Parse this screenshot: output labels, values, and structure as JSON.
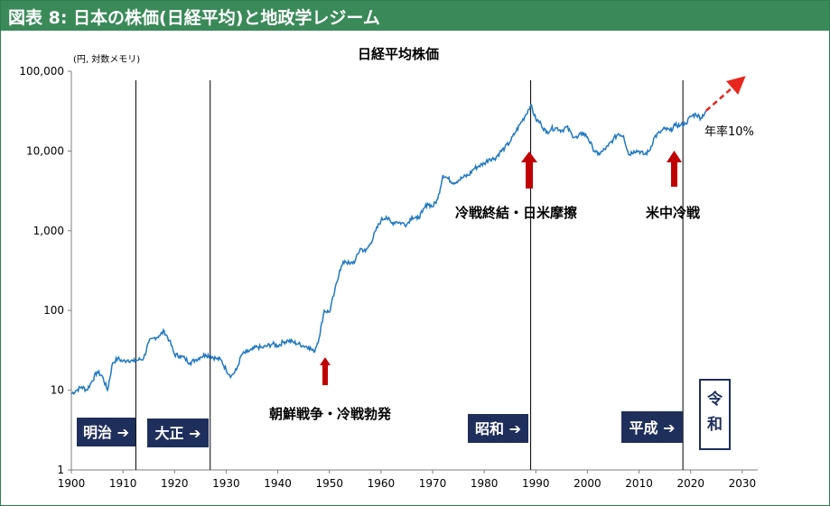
{
  "header": {
    "title": "図表 8: 日本の株価(日経平均)と地政学レジーム"
  },
  "chart_data": {
    "type": "line",
    "title": "日経平均株価",
    "ylabel": "(円, 対数メモリ)",
    "xlabel": "",
    "y_scale": "log",
    "ylim": [
      1,
      100000
    ],
    "xlim": [
      1900,
      2033
    ],
    "x_ticks": [
      "1900",
      "1910",
      "1920",
      "1930",
      "1940",
      "1950",
      "1960",
      "1970",
      "1980",
      "1990",
      "2000",
      "2010",
      "2020",
      "2030"
    ],
    "y_ticks": [
      "1",
      "10",
      "100",
      "1,000",
      "10,000",
      "100,000"
    ],
    "grid": false,
    "line_color": "#1f78c1",
    "series": [
      {
        "x": [
          1900,
          1901,
          1902,
          1903,
          1904,
          1905,
          1906,
          1907,
          1908,
          1909,
          1910,
          1911,
          1912,
          1913,
          1914,
          1915,
          1916,
          1917,
          1918,
          1919,
          1920,
          1921,
          1922,
          1923,
          1924,
          1925,
          1926,
          1927,
          1928,
          1929,
          1930,
          1931,
          1932,
          1933,
          1934,
          1935,
          1936,
          1937,
          1938,
          1939,
          1940,
          1941,
          1942,
          1943,
          1944,
          1945,
          1946,
          1947,
          1948,
          1949,
          1950,
          1951,
          1952,
          1953,
          1954,
          1955,
          1956,
          1957,
          1958,
          1959,
          1960,
          1961,
          1962,
          1963,
          1964,
          1965,
          1966,
          1967,
          1968,
          1969,
          1970,
          1971,
          1972,
          1973,
          1974,
          1975,
          1976,
          1977,
          1978,
          1979,
          1980,
          1981,
          1982,
          1983,
          1984,
          1985,
          1986,
          1987,
          1988,
          1989,
          1990,
          1991,
          1992,
          1993,
          1994,
          1995,
          1996,
          1997,
          1998,
          1999,
          2000,
          2001,
          2002,
          2003,
          2004,
          2005,
          2006,
          2007,
          2008,
          2009,
          2010,
          2011,
          2012,
          2013,
          2014,
          2015,
          2016,
          2017,
          2018,
          2019,
          2020,
          2021,
          2022,
          2023
        ],
        "values": [
          9,
          10,
          11,
          10,
          13,
          17,
          15,
          10,
          22,
          25,
          23,
          24,
          23,
          24,
          25,
          40,
          45,
          48,
          55,
          42,
          28,
          27,
          25,
          22,
          24,
          26,
          28,
          27,
          25,
          24,
          18,
          15,
          18,
          28,
          30,
          32,
          35,
          34,
          36,
          38,
          36,
          40,
          42,
          40,
          38,
          36,
          35,
          30,
          45,
          100,
          95,
          170,
          320,
          420,
          380,
          420,
          600,
          550,
          700,
          1000,
          1350,
          1500,
          1250,
          1300,
          1250,
          1200,
          1500,
          1400,
          1700,
          2200,
          2000,
          2500,
          5000,
          4500,
          4000,
          4300,
          4700,
          5000,
          6000,
          6500,
          7000,
          8000,
          8000,
          9500,
          11000,
          13000,
          17000,
          22000,
          28000,
          38000,
          25000,
          22000,
          17000,
          19000,
          19500,
          18000,
          20000,
          16000,
          14500,
          17000,
          15000,
          11000,
          9000,
          10000,
          11500,
          14000,
          16500,
          15500,
          9000,
          10000,
          10000,
          9000,
          10000,
          15000,
          17000,
          19000,
          18000,
          21000,
          21000,
          22000,
          27000,
          29000,
          26000,
          32000
        ]
      }
    ],
    "projection": {
      "label": "年率10%",
      "from": [
        2023,
        32000
      ],
      "to": [
        2030,
        80000
      ]
    },
    "vlines": [
      1912.5,
      1926.9,
      1989,
      2018.5
    ],
    "annotations": [
      {
        "text": "朝鮮戦争・冷戦勃発",
        "x": 1950
      },
      {
        "text": "冷戦終結・日米摩擦",
        "x": 1989
      },
      {
        "text": "米中冷戦",
        "x": 2017
      }
    ],
    "eras": [
      {
        "label": "明治 ➔"
      },
      {
        "label": "大正 ➔"
      },
      {
        "label": "昭和 ➔"
      },
      {
        "label": "平成 ➔"
      },
      {
        "label_line1": "令",
        "label_line2": "和"
      }
    ]
  }
}
